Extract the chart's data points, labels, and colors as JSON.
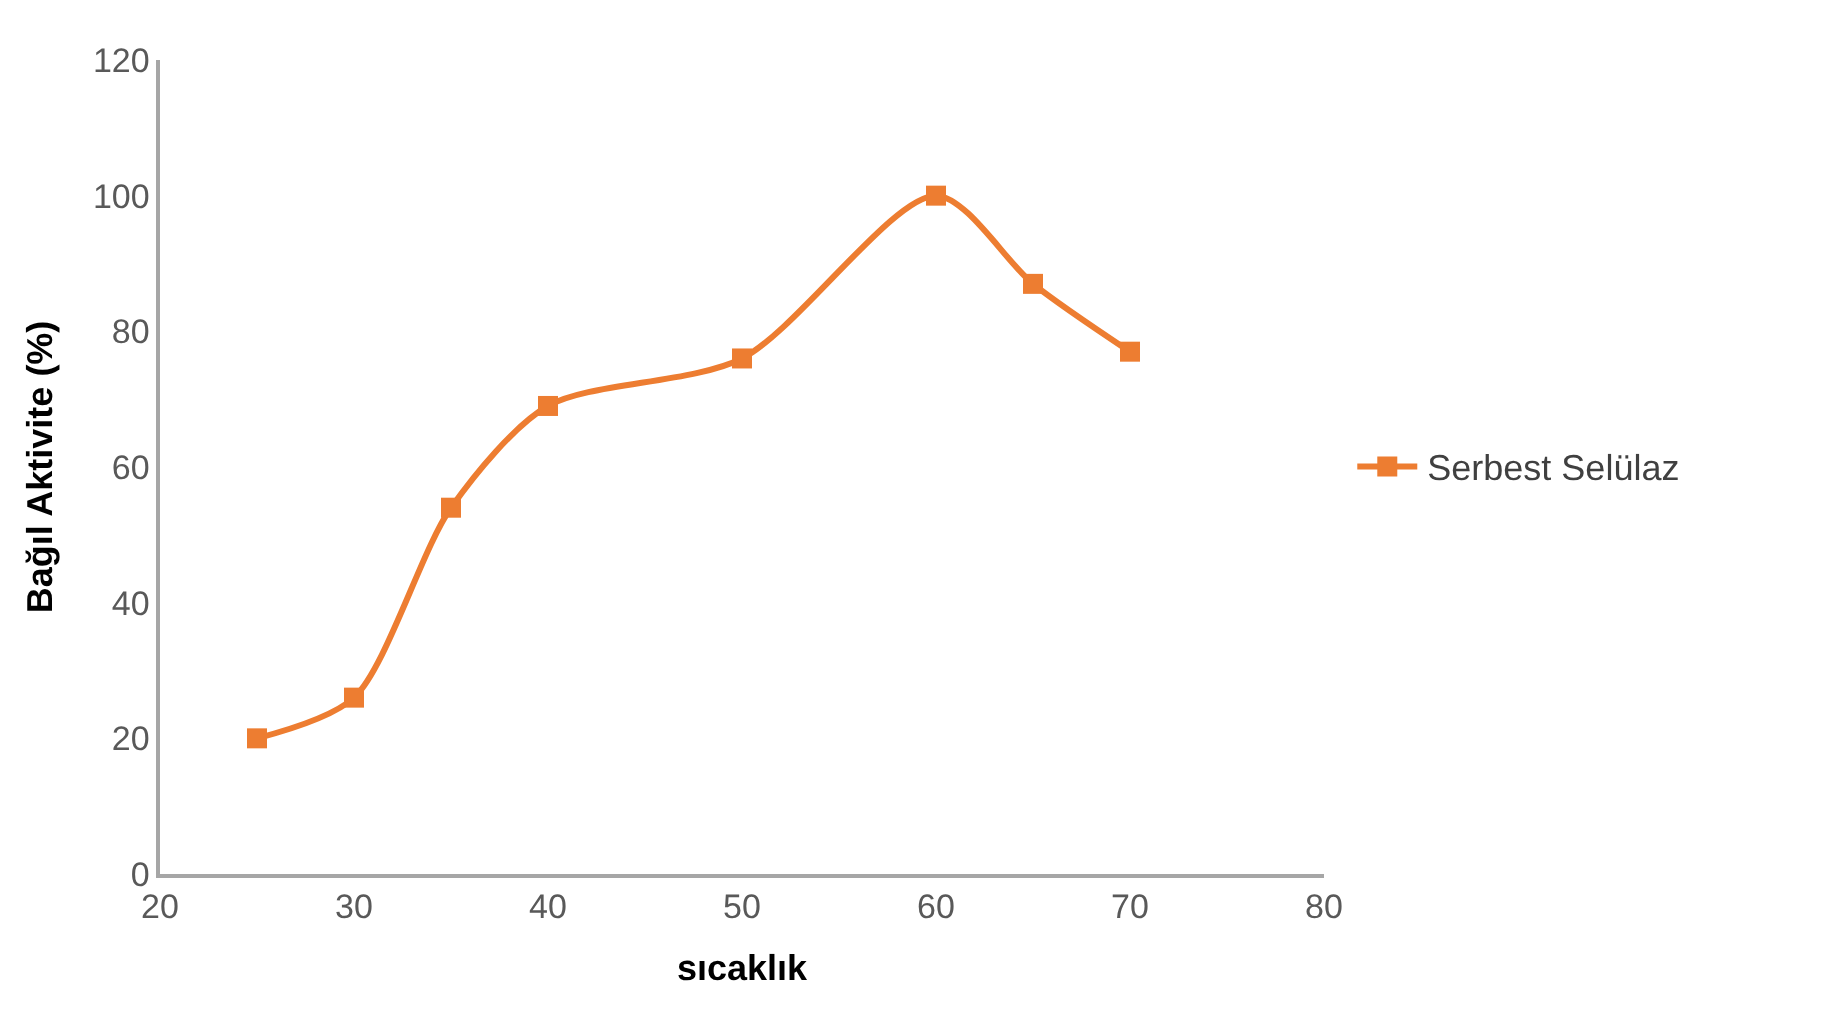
{
  "chart_data": {
    "type": "line",
    "xlabel": "sıcaklık",
    "ylabel": "Bağıl Aktivite (%)",
    "x": [
      25,
      30,
      35,
      40,
      50,
      60,
      65,
      70
    ],
    "series": [
      {
        "name": "Serbest Selülaz",
        "color": "#ed7d31",
        "values": [
          20,
          26,
          54,
          69,
          76,
          100,
          87,
          77
        ]
      }
    ],
    "xlim": [
      20,
      80
    ],
    "xticks": [
      20,
      30,
      40,
      50,
      60,
      70,
      80
    ],
    "ylim": [
      0,
      120
    ],
    "yticks": [
      0,
      20,
      40,
      60,
      80,
      100,
      120
    ],
    "legend": "right",
    "marker": "square",
    "line_style": "solid"
  }
}
